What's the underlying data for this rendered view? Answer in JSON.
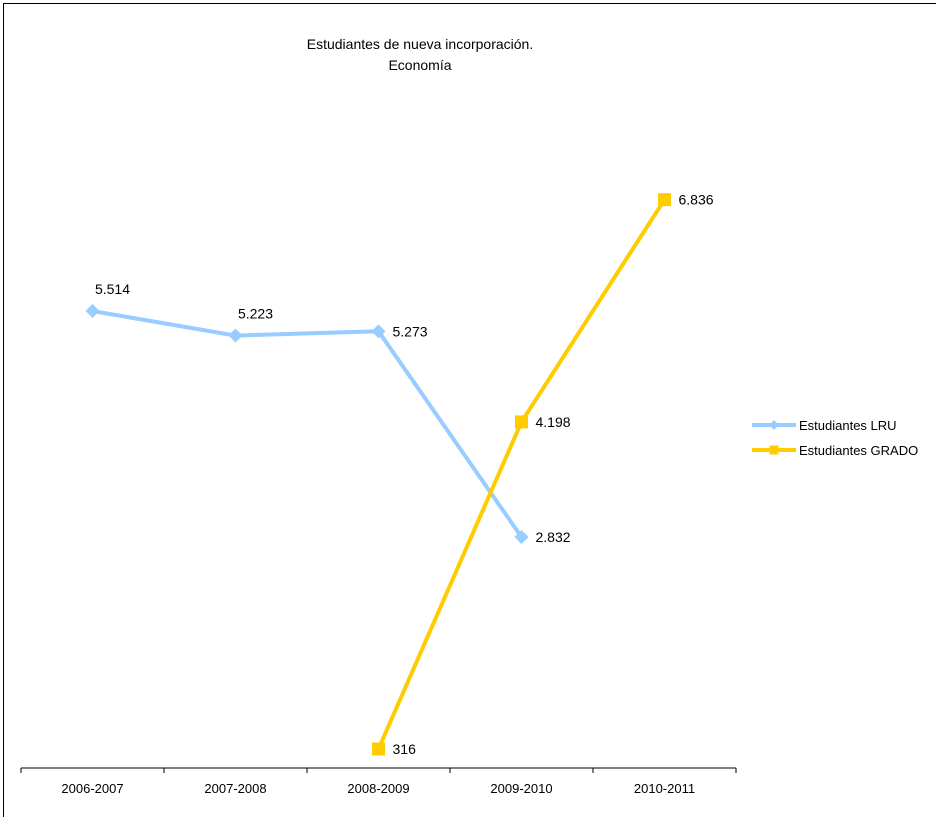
{
  "chart_data": {
    "type": "line",
    "title": "Estudiantes de nueva incorporación.",
    "subtitle": "Economía",
    "categories": [
      "2006-2007",
      "2007-2008",
      "2008-2009",
      "2009-2010",
      "2010-2011"
    ],
    "series": [
      {
        "name": "Estudiantes LRU",
        "color": "#99CCFF",
        "marker": "diamond",
        "values": [
          5514,
          5223,
          5273,
          2832,
          null
        ],
        "labels": [
          "5.514",
          "5.223",
          "5.273",
          "2.832",
          ""
        ]
      },
      {
        "name": "Estudiantes GRADO",
        "color": "#FFCC00",
        "marker": "square",
        "values": [
          null,
          null,
          316,
          4198,
          6836
        ],
        "labels": [
          "",
          "",
          "316",
          "4.198",
          "6.836"
        ]
      }
    ],
    "ylim": [
      0,
      7500
    ],
    "grid": false,
    "legend": "right"
  }
}
